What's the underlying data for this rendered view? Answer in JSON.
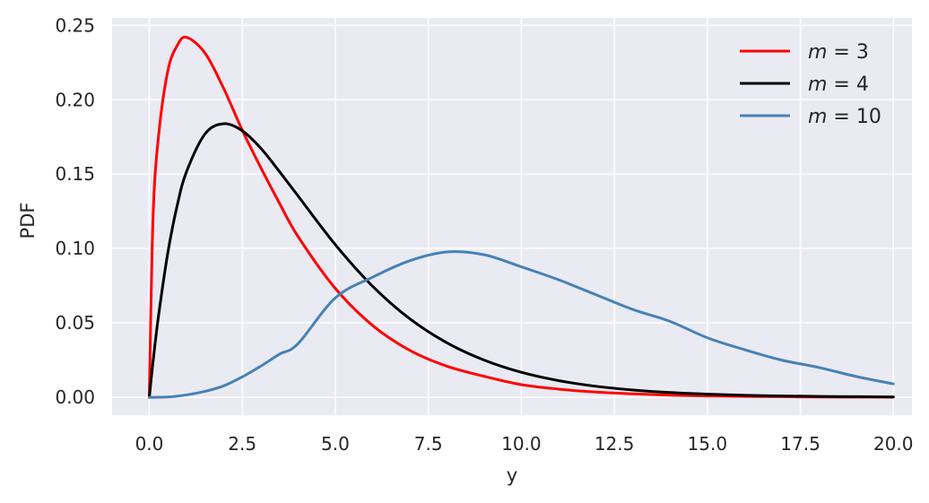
{
  "chart_data": {
    "type": "line",
    "xlabel": "y",
    "ylabel": "PDF",
    "xlim": [
      -1,
      20.5
    ],
    "ylim": [
      -0.012,
      0.255
    ],
    "grid": true,
    "legend_position": "top-right",
    "xticks": [
      0.0,
      2.5,
      5.0,
      7.5,
      10.0,
      12.5,
      15.0,
      17.5,
      20.0
    ],
    "xtick_labels": [
      "0.0",
      "2.5",
      "5.0",
      "7.5",
      "10.0",
      "12.5",
      "15.0",
      "17.5",
      "20.0"
    ],
    "yticks": [
      0.0,
      0.05,
      0.1,
      0.15,
      0.2,
      0.25
    ],
    "ytick_labels": [
      "0.00",
      "0.05",
      "0.10",
      "0.15",
      "0.20",
      "0.25"
    ],
    "series": [
      {
        "name": "m = 3",
        "legend_var": "m",
        "legend_value": "3",
        "color": "#ff0000",
        "x": [
          0,
          0.1,
          0.25,
          0.5,
          0.75,
          1,
          1.5,
          2,
          2.5,
          3,
          3.5,
          4,
          5,
          6,
          7,
          8,
          9,
          10,
          11,
          12,
          13,
          14,
          15,
          16,
          17,
          18,
          19,
          20
        ],
        "y": [
          0,
          0.1203,
          0.176,
          0.2196,
          0.2364,
          0.242,
          0.2313,
          0.2076,
          0.1795,
          0.1542,
          0.1304,
          0.108,
          0.0732,
          0.0483,
          0.0316,
          0.0209,
          0.0141,
          0.0085,
          0.0055,
          0.0035,
          0.0023,
          0.0014,
          0.0009,
          0.0006,
          0.0004,
          0.0002,
          0.0001,
          0.0001
        ]
      },
      {
        "name": "m = 4",
        "legend_var": "m",
        "legend_value": "4",
        "color": "#000000",
        "x": [
          0,
          0.1,
          0.25,
          0.5,
          0.75,
          1,
          1.5,
          2,
          2.5,
          3,
          3.5,
          4,
          5,
          6,
          7,
          8,
          9,
          10,
          11,
          12,
          13,
          14,
          15,
          16,
          17,
          18,
          19,
          20
        ],
        "y": [
          0,
          0.0238,
          0.0551,
          0.0974,
          0.1289,
          0.1516,
          0.1771,
          0.1839,
          0.1791,
          0.1673,
          0.1517,
          0.1353,
          0.1026,
          0.0747,
          0.0528,
          0.0366,
          0.025,
          0.0168,
          0.0112,
          0.0074,
          0.0049,
          0.0032,
          0.0021,
          0.0013,
          0.0009,
          0.0006,
          0.0004,
          0.0002
        ]
      },
      {
        "name": "m = 10",
        "legend_var": "m",
        "legend_value": "10",
        "color": "#4682b4",
        "x": [
          0,
          0.5,
          1,
          1.5,
          2,
          2.5,
          3,
          3.5,
          4,
          5,
          6,
          7,
          8,
          9,
          10,
          11,
          12,
          13,
          14,
          15,
          16,
          17,
          18,
          19,
          20
        ],
        "y": [
          0,
          0.0002,
          0.0016,
          0.004,
          0.0077,
          0.0137,
          0.021,
          0.029,
          0.0361,
          0.0668,
          0.0807,
          0.0918,
          0.0977,
          0.0958,
          0.0877,
          0.079,
          0.069,
          0.059,
          0.051,
          0.04,
          0.032,
          0.025,
          0.02,
          0.014,
          0.009
        ]
      }
    ]
  }
}
